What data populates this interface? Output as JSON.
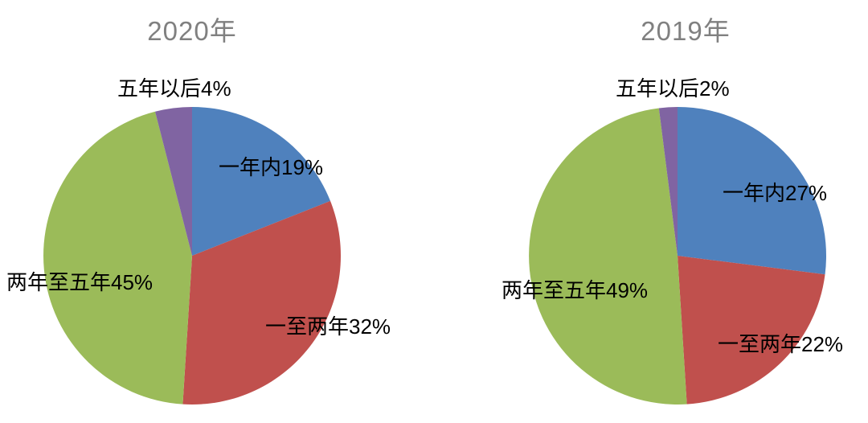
{
  "figure": {
    "background": "#ffffff",
    "title_color": "#808080",
    "label_color": "#000000"
  },
  "chart_data": [
    {
      "type": "pie",
      "title": "2020年",
      "categories": [
        "一年内",
        "一至两年",
        "两年至五年",
        "五年以后"
      ],
      "values": [
        19,
        32,
        45,
        4
      ],
      "unit": "%",
      "colors": [
        "#4F81BD",
        "#C0504D",
        "#9BBB59",
        "#8064A2"
      ],
      "start_angle_deg": 0,
      "direction": "clockwise",
      "legend": "none",
      "data_labels": [
        "一年内19%",
        "一至两年32%",
        "两年至五年45%",
        "五年以后4%"
      ]
    },
    {
      "type": "pie",
      "title": "2019年",
      "categories": [
        "一年内",
        "一至两年",
        "两年至五年",
        "五年以后"
      ],
      "values": [
        27,
        22,
        49,
        2
      ],
      "unit": "%",
      "colors": [
        "#4F81BD",
        "#C0504D",
        "#9BBB59",
        "#8064A2"
      ],
      "start_angle_deg": 0,
      "direction": "clockwise",
      "legend": "none",
      "data_labels": [
        "一年内27%",
        "一至两年22%",
        "两年至五年49%",
        "五年以后2%"
      ]
    }
  ]
}
